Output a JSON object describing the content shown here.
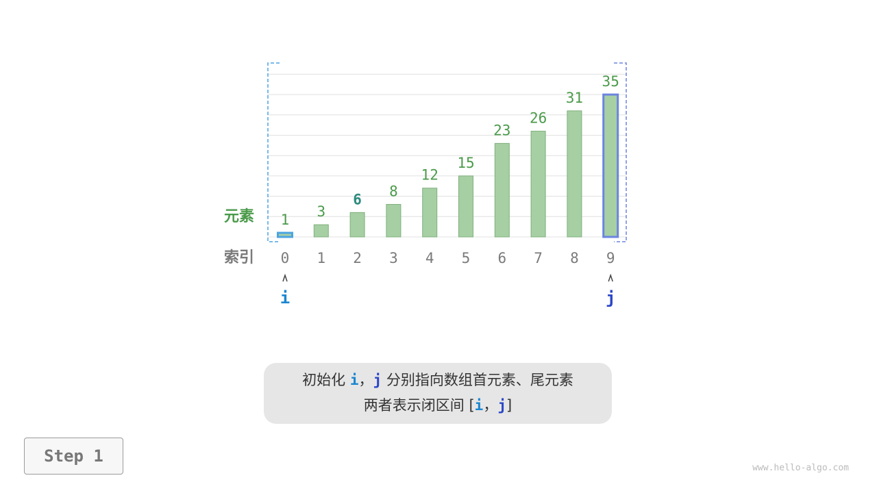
{
  "labels": {
    "elements": "元素",
    "index": "索引"
  },
  "values": [
    1,
    3,
    6,
    8,
    12,
    15,
    23,
    26,
    31,
    35
  ],
  "indices": [
    "0",
    "1",
    "2",
    "3",
    "4",
    "5",
    "6",
    "7",
    "8",
    "9"
  ],
  "highlighted_value_index": 2,
  "pointers": {
    "i": {
      "label": "i",
      "index": 0,
      "color": "#1a86d0"
    },
    "j": {
      "label": "j",
      "index": 9,
      "color": "#2b46c8"
    }
  },
  "colors": {
    "bar_fill": "#a6cfa3",
    "bar_stroke": "#7fb07c",
    "value_text": "#4a9a4a",
    "highlight_value": "#2e8b7f",
    "index_text": "#7a7a7a",
    "grid": "#e0e0e0",
    "i_box": "#4ba3e3",
    "j_box": "#6b84e0"
  },
  "caption": {
    "line1_prefix": "初始化 ",
    "i": "i",
    "comma": "，",
    "j": "j",
    "line1_suffix": " 分别指向数组首元素、尾元素",
    "line2_prefix": "两者表示闭区间 [",
    "line2_suffix": "]"
  },
  "step_label": "Step 1",
  "watermark": "www.hello-algo.com"
}
